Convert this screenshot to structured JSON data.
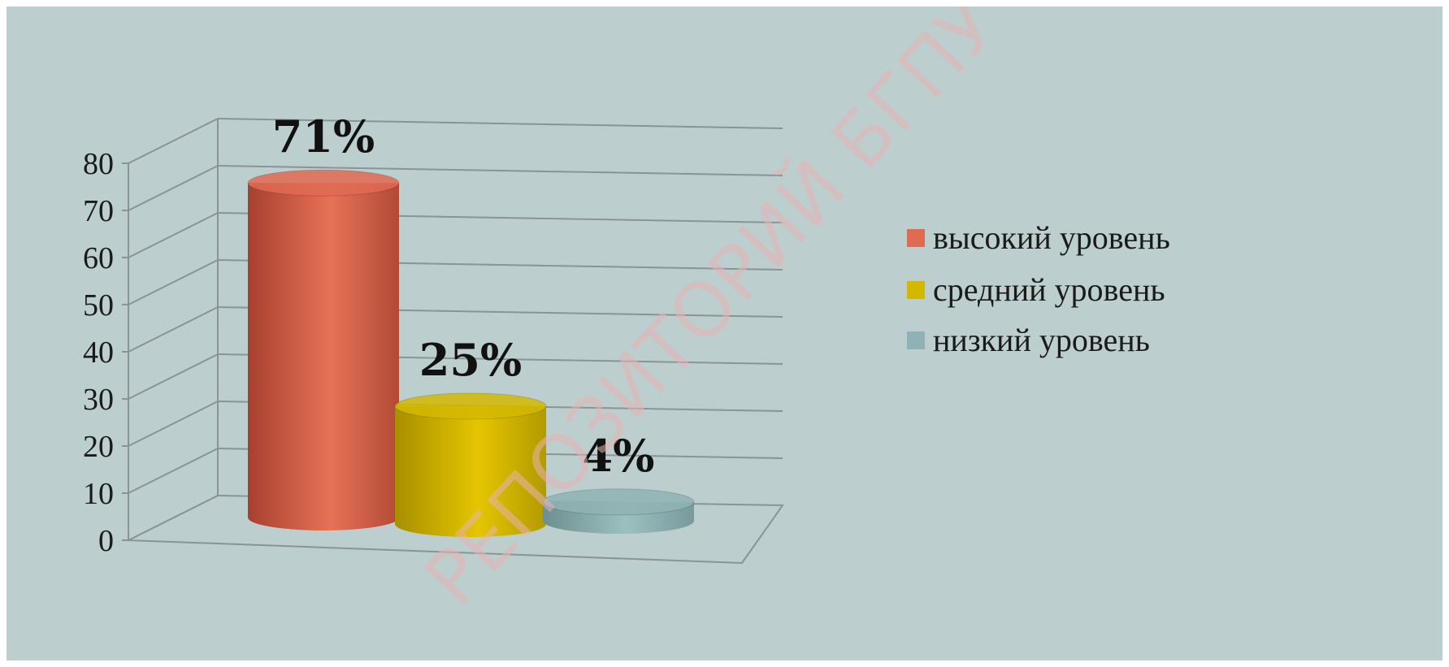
{
  "colors": {
    "background": "#bccfce",
    "grid": "#8a9495",
    "series": [
      "#e06a52",
      "#d4b800",
      "#8fb3b4"
    ]
  },
  "watermark": "РЕПОЗИТОРИЙ БГПУ",
  "chart_data": {
    "type": "bar",
    "style": "3d-cylinder",
    "title": "",
    "xlabel": "",
    "ylabel": "",
    "ylim": [
      0,
      80
    ],
    "yticks": [
      "0",
      "10",
      "20",
      "30",
      "40",
      "50",
      "60",
      "70",
      "80"
    ],
    "grid": true,
    "legend_position": "right",
    "series": [
      {
        "name": "высокий уровень",
        "value": 71,
        "label": "71%"
      },
      {
        "name": "средний уровень",
        "value": 25,
        "label": "25%"
      },
      {
        "name": "низкий уровень",
        "value": 4,
        "label": "4%"
      }
    ]
  }
}
